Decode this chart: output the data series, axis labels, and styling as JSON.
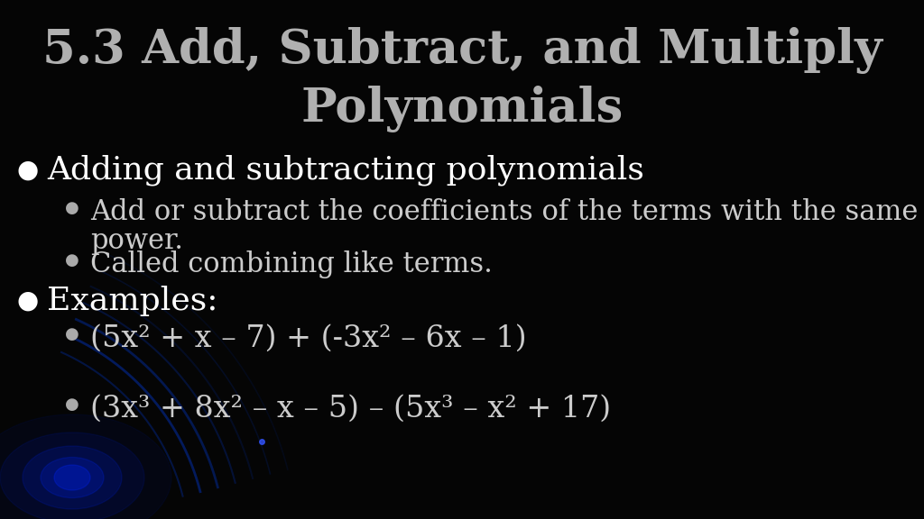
{
  "title_line1": "5.3 Add, Subtract, and Multiply",
  "title_line2": "Polynomials",
  "title_color": "#b0b0b0",
  "title_fontsize": 38,
  "bg_color": "#050505",
  "bullet_color": "#ffffff",
  "sub_bullet_color": "#cccccc",
  "bullet1_text": "Adding and subtracting polynomials",
  "bullet1_fontsize": 26,
  "sub_bullet1_line1": "Add or subtract the coefficients of the terms with the same",
  "sub_bullet1_line2": "power.",
  "sub_bullet2_text": "Called combining like terms.",
  "sub_bullet_fontsize": 22,
  "bullet2_text": "Examples:",
  "bullet2_fontsize": 26,
  "example1": "(5x² + x – 7) + (-3x² – 6x – 1)",
  "example2": "(3x³ + 8x² – x – 5) – (5x³ – x² + 17)",
  "example_fontsize": 24,
  "bullet_dot_size": 20,
  "sub_dot_size": 13
}
